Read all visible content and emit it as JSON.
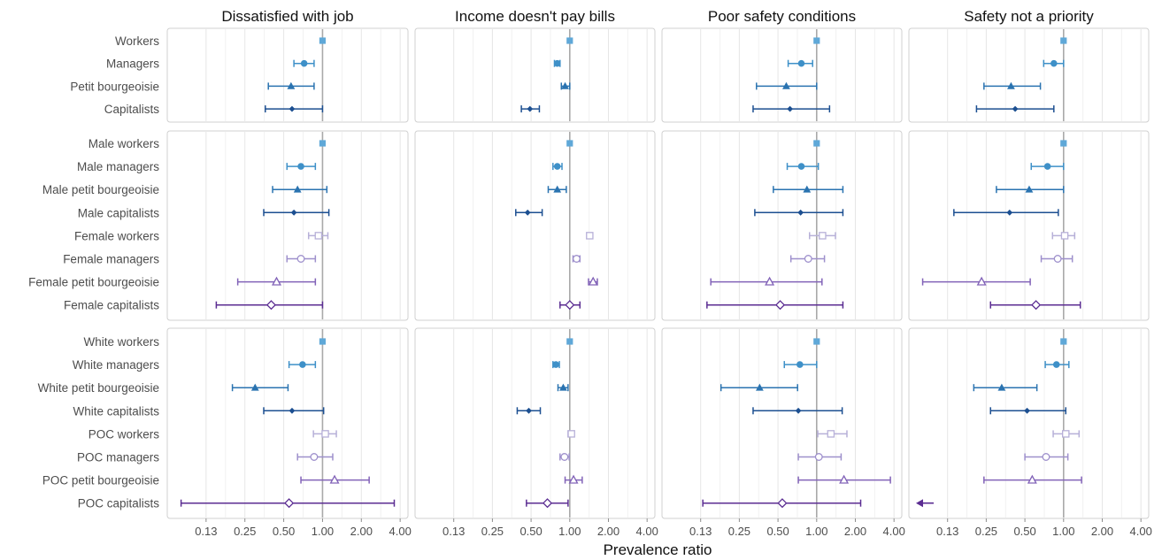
{
  "chart_data": {
    "type": "forest",
    "facet_columns": [
      "Dissatisfied with job",
      "Income doesn't pay bills",
      "Poor safety conditions",
      "Safety not a priority"
    ],
    "xlabel": "Prevalence ratio",
    "x_scale": "log2",
    "xlim": [
      0.0625,
      4.6
    ],
    "x_ticks": [
      0.125,
      0.25,
      0.5,
      1,
      2,
      4
    ],
    "x_tick_labels": [
      "0.13",
      "0.25",
      "0.50",
      "1.00",
      "2.00",
      "4.00"
    ],
    "reference_line": 1,
    "colors": {
      "workers": "#5fa8d8",
      "managers": "#3e90c8",
      "petit_bourgeoisie": "#2a73b0",
      "capitalists": "#1c4f91",
      "female_workers": "#b7b0d8",
      "female_managers": "#9e90cc",
      "female_petit_bourgeoisie": "#8263b8",
      "female_capitalists": "#5b2d92"
    },
    "row_groups": [
      {
        "rows": [
          {
            "label": "Workers",
            "shape": "square-filled",
            "color": "#5fa8d8"
          },
          {
            "label": "Managers",
            "shape": "circle-filled",
            "color": "#3e90c8"
          },
          {
            "label": "Petit bourgeoisie",
            "shape": "triangle-filled",
            "color": "#2a73b0"
          },
          {
            "label": "Capitalists",
            "shape": "diamond-filled",
            "color": "#1c4f91"
          }
        ],
        "series": [
          [
            {
              "est": 1.0,
              "lo": null,
              "hi": null
            },
            {
              "est": 0.72,
              "lo": 0.6,
              "hi": 0.86
            },
            {
              "est": 0.57,
              "lo": 0.38,
              "hi": 0.86
            },
            {
              "est": 0.58,
              "lo": 0.36,
              "hi": 1.0
            }
          ],
          [
            {
              "est": 1.0,
              "lo": null,
              "hi": null
            },
            {
              "est": 0.8,
              "lo": 0.76,
              "hi": 0.84
            },
            {
              "est": 0.92,
              "lo": 0.86,
              "hi": 1.0
            },
            {
              "est": 0.49,
              "lo": 0.42,
              "hi": 0.58
            }
          ],
          [
            {
              "est": 1.0,
              "lo": null,
              "hi": null
            },
            {
              "est": 0.76,
              "lo": 0.6,
              "hi": 0.93
            },
            {
              "est": 0.58,
              "lo": 0.34,
              "hi": 1.0
            },
            {
              "est": 0.62,
              "lo": 0.32,
              "hi": 1.26
            }
          ],
          [
            {
              "est": 1.0,
              "lo": null,
              "hi": null
            },
            {
              "est": 0.84,
              "lo": 0.7,
              "hi": 1.0
            },
            {
              "est": 0.39,
              "lo": 0.24,
              "hi": 0.66
            },
            {
              "est": 0.42,
              "lo": 0.21,
              "hi": 0.84
            }
          ]
        ]
      },
      {
        "rows": [
          {
            "label": "Male workers",
            "shape": "square-filled",
            "color": "#5fa8d8"
          },
          {
            "label": "Male managers",
            "shape": "circle-filled",
            "color": "#3e90c8"
          },
          {
            "label": "Male petit bourgeoisie",
            "shape": "triangle-filled",
            "color": "#2a73b0"
          },
          {
            "label": "Male capitalists",
            "shape": "diamond-filled",
            "color": "#1c4f91"
          },
          {
            "label": "Female workers",
            "shape": "square-open",
            "color": "#b7b0d8"
          },
          {
            "label": "Female managers",
            "shape": "circle-open",
            "color": "#9e90cc"
          },
          {
            "label": "Female petit bourgeoisie",
            "shape": "triangle-open",
            "color": "#8263b8"
          },
          {
            "label": "Female capitalists",
            "shape": "diamond-open",
            "color": "#5b2d92"
          }
        ],
        "series": [
          [
            {
              "est": 1.0,
              "lo": null,
              "hi": null
            },
            {
              "est": 0.68,
              "lo": 0.53,
              "hi": 0.88
            },
            {
              "est": 0.64,
              "lo": 0.41,
              "hi": 1.08
            },
            {
              "est": 0.6,
              "lo": 0.35,
              "hi": 1.12
            },
            {
              "est": 0.93,
              "lo": 0.78,
              "hi": 1.1
            },
            {
              "est": 0.68,
              "lo": 0.53,
              "hi": 0.88
            },
            {
              "est": 0.44,
              "lo": 0.22,
              "hi": 0.88
            },
            {
              "est": 0.4,
              "lo": 0.15,
              "hi": 1.0
            }
          ],
          [
            {
              "est": 1.0,
              "lo": null,
              "hi": null
            },
            {
              "est": 0.8,
              "lo": 0.74,
              "hi": 0.87
            },
            {
              "est": 0.8,
              "lo": 0.68,
              "hi": 0.94
            },
            {
              "est": 0.47,
              "lo": 0.38,
              "hi": 0.61
            },
            {
              "est": 1.43,
              "lo": 1.38,
              "hi": 1.48
            },
            {
              "est": 1.13,
              "lo": 1.06,
              "hi": 1.2
            },
            {
              "est": 1.52,
              "lo": 1.4,
              "hi": 1.64
            },
            {
              "est": 1.0,
              "lo": 0.84,
              "hi": 1.2
            }
          ],
          [
            {
              "est": 1.0,
              "lo": null,
              "hi": null
            },
            {
              "est": 0.76,
              "lo": 0.59,
              "hi": 1.03
            },
            {
              "est": 0.84,
              "lo": 0.46,
              "hi": 1.6
            },
            {
              "est": 0.75,
              "lo": 0.33,
              "hi": 1.6
            },
            {
              "est": 1.11,
              "lo": 0.88,
              "hi": 1.4
            },
            {
              "est": 0.86,
              "lo": 0.63,
              "hi": 1.15
            },
            {
              "est": 0.43,
              "lo": 0.15,
              "hi": 1.1
            },
            {
              "est": 0.52,
              "lo": 0.14,
              "hi": 1.6
            }
          ],
          [
            {
              "est": 1.0,
              "lo": null,
              "hi": null
            },
            {
              "est": 0.75,
              "lo": 0.56,
              "hi": 1.0
            },
            {
              "est": 0.54,
              "lo": 0.3,
              "hi": 1.0
            },
            {
              "est": 0.38,
              "lo": 0.14,
              "hi": 0.91
            },
            {
              "est": 1.02,
              "lo": 0.82,
              "hi": 1.22
            },
            {
              "est": 0.9,
              "lo": 0.67,
              "hi": 1.17
            },
            {
              "est": 0.23,
              "lo": 0.08,
              "hi": 0.55
            },
            {
              "est": 0.61,
              "lo": 0.27,
              "hi": 1.35
            }
          ]
        ]
      },
      {
        "rows": [
          {
            "label": "White workers",
            "shape": "square-filled",
            "color": "#5fa8d8"
          },
          {
            "label": "White managers",
            "shape": "circle-filled",
            "color": "#3e90c8"
          },
          {
            "label": "White petit bourgeoisie",
            "shape": "triangle-filled",
            "color": "#2a73b0"
          },
          {
            "label": "White capitalists",
            "shape": "diamond-filled",
            "color": "#1c4f91"
          },
          {
            "label": "POC workers",
            "shape": "square-open",
            "color": "#b7b0d8"
          },
          {
            "label": "POC managers",
            "shape": "circle-open",
            "color": "#9e90cc"
          },
          {
            "label": "POC petit bourgeoisie",
            "shape": "triangle-open",
            "color": "#8263b8"
          },
          {
            "label": "POC capitalists",
            "shape": "diamond-open",
            "color": "#5b2d92"
          }
        ],
        "series": [
          [
            {
              "est": 1.0,
              "lo": null,
              "hi": null
            },
            {
              "est": 0.7,
              "lo": 0.55,
              "hi": 0.88
            },
            {
              "est": 0.3,
              "lo": 0.2,
              "hi": 0.54
            },
            {
              "est": 0.58,
              "lo": 0.35,
              "hi": 1.02
            },
            {
              "est": 1.05,
              "lo": 0.85,
              "hi": 1.28
            },
            {
              "est": 0.86,
              "lo": 0.64,
              "hi": 1.2
            },
            {
              "est": 1.24,
              "lo": 0.68,
              "hi": 2.3
            },
            {
              "est": 0.55,
              "lo": 0.08,
              "hi": 3.6
            }
          ],
          [
            {
              "est": 1.0,
              "lo": null,
              "hi": null
            },
            {
              "est": 0.78,
              "lo": 0.74,
              "hi": 0.83
            },
            {
              "est": 0.89,
              "lo": 0.81,
              "hi": 0.97
            },
            {
              "est": 0.48,
              "lo": 0.39,
              "hi": 0.59
            },
            {
              "est": 1.03,
              "lo": 0.97,
              "hi": 1.08
            },
            {
              "est": 0.91,
              "lo": 0.84,
              "hi": 0.99
            },
            {
              "est": 1.07,
              "lo": 0.92,
              "hi": 1.25
            },
            {
              "est": 0.67,
              "lo": 0.46,
              "hi": 0.97
            }
          ],
          [
            {
              "est": 1.0,
              "lo": null,
              "hi": null
            },
            {
              "est": 0.74,
              "lo": 0.56,
              "hi": 1.0
            },
            {
              "est": 0.36,
              "lo": 0.18,
              "hi": 0.71
            },
            {
              "est": 0.72,
              "lo": 0.32,
              "hi": 1.58
            },
            {
              "est": 1.29,
              "lo": 1.02,
              "hi": 1.72
            },
            {
              "est": 1.04,
              "lo": 0.72,
              "hi": 1.55
            },
            {
              "est": 1.63,
              "lo": 0.72,
              "hi": 3.75
            },
            {
              "est": 0.54,
              "lo": 0.13,
              "hi": 2.2
            }
          ],
          [
            {
              "est": 1.0,
              "lo": null,
              "hi": null
            },
            {
              "est": 0.88,
              "lo": 0.72,
              "hi": 1.1
            },
            {
              "est": 0.33,
              "lo": 0.2,
              "hi": 0.62
            },
            {
              "est": 0.52,
              "lo": 0.27,
              "hi": 1.04
            },
            {
              "est": 1.04,
              "lo": 0.83,
              "hi": 1.32
            },
            {
              "est": 0.73,
              "lo": 0.5,
              "hi": 1.08
            },
            {
              "est": 0.57,
              "lo": 0.24,
              "hi": 1.38
            },
            {
              "est": null,
              "lo": null,
              "hi": null,
              "arrow_left": true
            }
          ]
        ]
      }
    ]
  }
}
